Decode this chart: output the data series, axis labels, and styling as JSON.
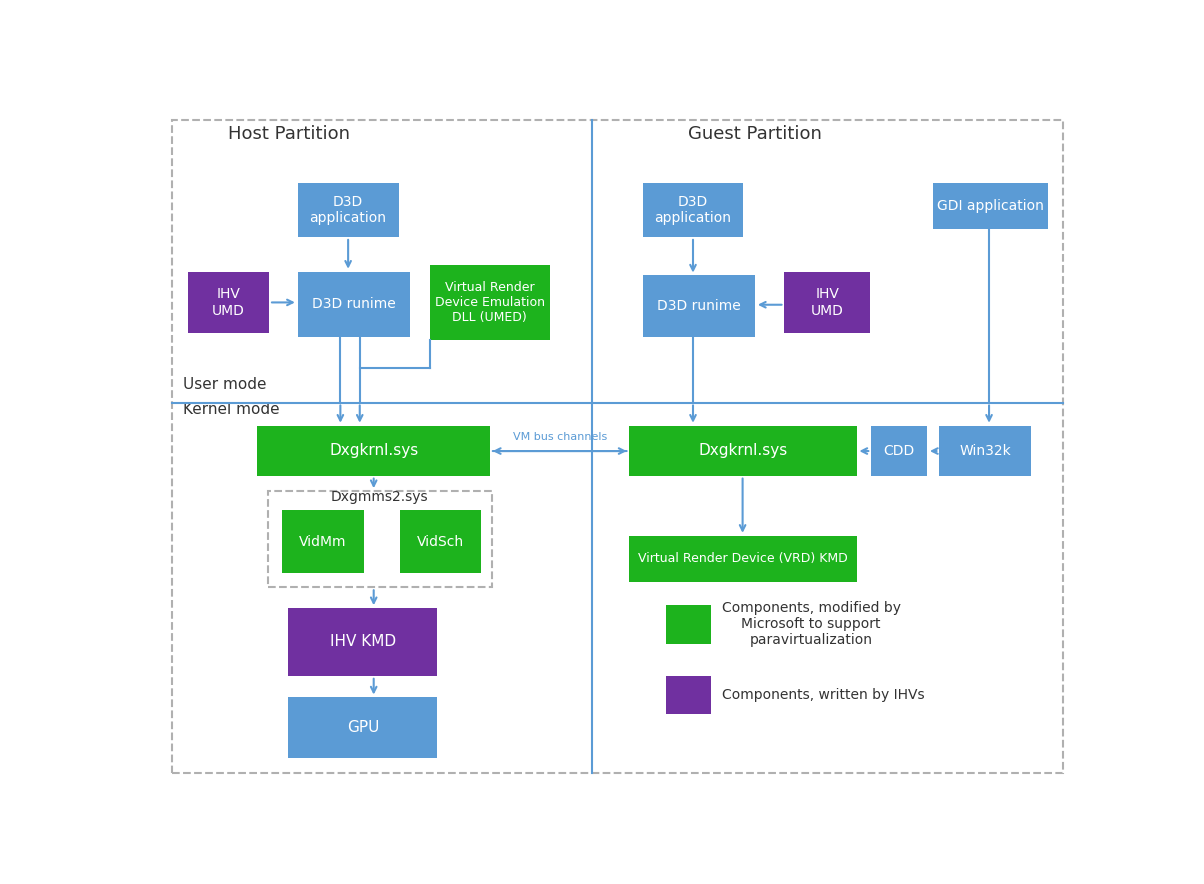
{
  "bg_color": "#ffffff",
  "host_label": "Host Partition",
  "guest_label": "Guest Partition",
  "user_mode_label": "User mode",
  "kernel_mode_label": "Kernel mode",
  "blue": "#5b9bd5",
  "green": "#1db31d",
  "purple": "#7030a0",
  "arrow_color": "#5b9bd5",
  "border_color": "#b0b0b0",
  "text_dark": "#333333",
  "legend": [
    {
      "color": "#1db31d",
      "text": "Components, modified by\nMicrosoft to support\nparavirtualization"
    },
    {
      "color": "#7030a0",
      "text": "Components, written by IHVs"
    }
  ]
}
